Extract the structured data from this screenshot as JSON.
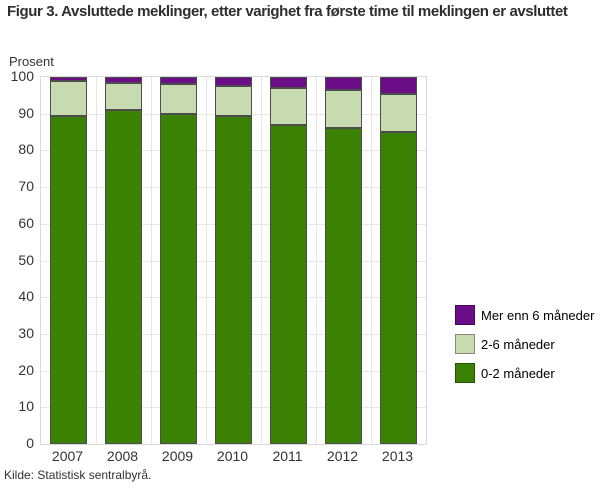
{
  "header": {
    "title": "Figur 3. Avsluttede meklinger, etter varighet fra første time til meklingen er avsluttet"
  },
  "source_line": "Kilde: Statistisk sentralbyrå.",
  "colors": {
    "series_0_2": "#3a8104",
    "series_2_6": "#c8dbb0",
    "series_over_6": "#6a0d86",
    "segment_border": "#4d4d4d",
    "gridline": "#e6e6e6",
    "plot_border": "#d9d9d9"
  },
  "chart_data": {
    "type": "bar",
    "stacked": true,
    "title": "Figur 3. Avsluttede meklinger, etter varighet fra første time til meklingen er avsluttet",
    "xlabel": "",
    "ylabel": "Prosent",
    "ylim": [
      0,
      100
    ],
    "yticks": [
      0,
      10,
      20,
      30,
      40,
      50,
      60,
      70,
      80,
      90,
      100
    ],
    "grid": true,
    "legend_position": "right",
    "categories": [
      "2007",
      "2008",
      "2009",
      "2010",
      "2011",
      "2012",
      "2013"
    ],
    "series": [
      {
        "name": "0-2 måneder",
        "color": "#3a8104",
        "values": [
          89.5,
          91.0,
          90.0,
          89.5,
          87.0,
          86.0,
          85.0
        ]
      },
      {
        "name": "2-6 måneder",
        "color": "#c8dbb0",
        "values": [
          9.5,
          7.5,
          8.0,
          8.0,
          10.0,
          10.5,
          10.5
        ]
      },
      {
        "name": "Mer enn 6 måneder",
        "color": "#6a0d86",
        "values": [
          1.0,
          1.5,
          2.0,
          2.5,
          3.0,
          3.5,
          4.5
        ]
      }
    ],
    "legend": [
      {
        "label": "Mer enn 6 måneder",
        "color": "#6a0d86"
      },
      {
        "label": "2-6 måneder",
        "color": "#c8dbb0"
      },
      {
        "label": "0-2 måneder",
        "color": "#3a8104"
      }
    ]
  }
}
